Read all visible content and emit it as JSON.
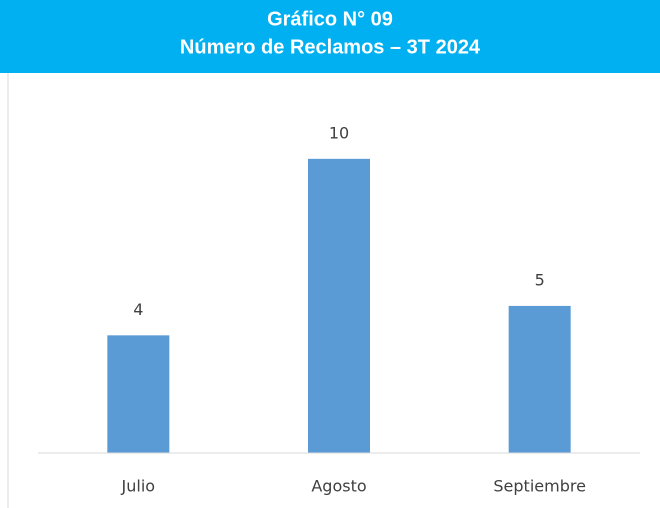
{
  "chart_data": {
    "type": "bar",
    "title": "Gráfico N° 09",
    "subtitle": "Número de Reclamos – 3T 2024",
    "categories": [
      "Julio",
      "Agosto",
      "Septiembre"
    ],
    "values": [
      4,
      10,
      5
    ],
    "color": "#5b9bd5",
    "ylim": [
      0,
      12
    ],
    "grid": false
  }
}
